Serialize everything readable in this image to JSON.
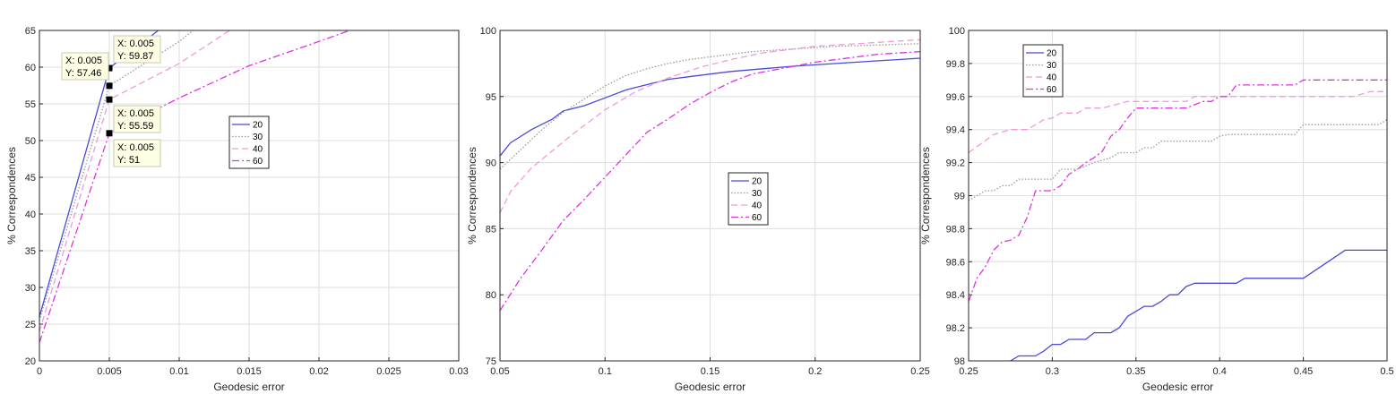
{
  "figure": {
    "legend_labels": [
      "20",
      "30",
      "40",
      "60"
    ],
    "series_colors": {
      "20": "#4a4ad8",
      "30": "#9a9a9a",
      "40": "#f29ad8",
      "60": "#e033e0"
    }
  },
  "chart_data": [
    {
      "type": "line",
      "xlabel": "Geodesic error",
      "ylabel": "% Correspondences",
      "xlim": [
        0,
        0.03
      ],
      "ylim": [
        20,
        65
      ],
      "xticks": [
        "0",
        "0.005",
        "0.01",
        "0.015",
        "0.02",
        "0.025",
        "0.03"
      ],
      "yticks": [
        "20",
        "25",
        "30",
        "35",
        "40",
        "45",
        "50",
        "55",
        "60",
        "65"
      ],
      "grid": true,
      "legend_position": "center-right",
      "series": [
        {
          "name": "20",
          "style": "solid",
          "x": [
            0,
            0.005,
            0.0085
          ],
          "y": [
            26,
            59.87,
            65
          ]
        },
        {
          "name": "30",
          "style": "dotted",
          "x": [
            0,
            0.005,
            0.01,
            0.011
          ],
          "y": [
            25.5,
            57.46,
            63.5,
            65
          ]
        },
        {
          "name": "40",
          "style": "dashed",
          "x": [
            0,
            0.005,
            0.01,
            0.0136
          ],
          "y": [
            24,
            55.59,
            60.5,
            65
          ]
        },
        {
          "name": "60",
          "style": "dashdot",
          "x": [
            0,
            0.005,
            0.01,
            0.015,
            0.02,
            0.0222
          ],
          "y": [
            22.5,
            51,
            55.8,
            60.2,
            63.5,
            65
          ]
        }
      ],
      "datatips": [
        {
          "x": 0.005,
          "y": 59.87,
          "lines": [
            "X: 0.005",
            "Y: 59.87"
          ]
        },
        {
          "x": 0.005,
          "y": 57.46,
          "lines": [
            "X: 0.005",
            "Y: 57.46"
          ]
        },
        {
          "x": 0.005,
          "y": 55.59,
          "lines": [
            "X: 0.005",
            "Y: 55.59"
          ]
        },
        {
          "x": 0.005,
          "y": 51,
          "lines": [
            "X: 0.005",
            "Y: 51"
          ]
        }
      ]
    },
    {
      "type": "line",
      "xlabel": "Geodesic error",
      "ylabel": "% Correspondences",
      "xlim": [
        0.05,
        0.25
      ],
      "ylim": [
        75,
        100
      ],
      "xticks": [
        "0.05",
        "0.1",
        "0.15",
        "0.2",
        "0.25"
      ],
      "yticks": [
        "75",
        "80",
        "85",
        "90",
        "95",
        "100"
      ],
      "grid": true,
      "legend_position": "center",
      "series": [
        {
          "name": "20",
          "style": "solid",
          "x": [
            0.05,
            0.055,
            0.065,
            0.075,
            0.08,
            0.09,
            0.1,
            0.11,
            0.12,
            0.13,
            0.14,
            0.15,
            0.16,
            0.175,
            0.19,
            0.2,
            0.21,
            0.22,
            0.23,
            0.24,
            0.25
          ],
          "y": [
            90.5,
            91.5,
            92.5,
            93.3,
            93.9,
            94.3,
            94.9,
            95.5,
            95.9,
            96.3,
            96.5,
            96.7,
            96.9,
            97.1,
            97.3,
            97.4,
            97.5,
            97.6,
            97.7,
            97.8,
            97.9
          ]
        },
        {
          "name": "30",
          "style": "dotted",
          "x": [
            0.05,
            0.06,
            0.07,
            0.08,
            0.09,
            0.1,
            0.11,
            0.12,
            0.13,
            0.14,
            0.15,
            0.16,
            0.17,
            0.18,
            0.19,
            0.2,
            0.21,
            0.22,
            0.23,
            0.24,
            0.25
          ],
          "y": [
            89.5,
            91.0,
            92.5,
            93.8,
            94.8,
            95.8,
            96.6,
            97.1,
            97.5,
            97.8,
            98.0,
            98.2,
            98.4,
            98.5,
            98.6,
            98.7,
            98.8,
            98.85,
            98.9,
            98.95,
            99.0
          ]
        },
        {
          "name": "40",
          "style": "dashed",
          "x": [
            0.05,
            0.055,
            0.065,
            0.075,
            0.085,
            0.1,
            0.115,
            0.13,
            0.145,
            0.16,
            0.175,
            0.19,
            0.2,
            0.21,
            0.22,
            0.23,
            0.24,
            0.25
          ],
          "y": [
            86.2,
            87.8,
            89.6,
            90.9,
            92.2,
            94.0,
            95.4,
            96.4,
            97.2,
            97.8,
            98.3,
            98.6,
            98.8,
            98.9,
            99.0,
            99.1,
            99.2,
            99.3
          ]
        },
        {
          "name": "60",
          "style": "dashdot",
          "x": [
            0.05,
            0.06,
            0.07,
            0.08,
            0.09,
            0.1,
            0.11,
            0.12,
            0.13,
            0.14,
            0.15,
            0.16,
            0.17,
            0.18,
            0.19,
            0.2,
            0.21,
            0.22,
            0.23,
            0.24,
            0.25
          ],
          "y": [
            78.8,
            81.3,
            83.4,
            85.6,
            87.2,
            88.9,
            90.6,
            92.3,
            93.3,
            94.4,
            95.3,
            96.1,
            96.7,
            97.0,
            97.3,
            97.6,
            97.8,
            98.0,
            98.2,
            98.3,
            98.4
          ]
        }
      ]
    },
    {
      "type": "line",
      "xlabel": "Geodesic error",
      "ylabel": "% Correspondences",
      "xlim": [
        0.25,
        0.5
      ],
      "ylim": [
        98,
        100
      ],
      "xticks": [
        "0.25",
        "0.3",
        "0.35",
        "0.4",
        "0.45",
        "0.5"
      ],
      "yticks": [
        "98",
        "98.2",
        "98.4",
        "98.6",
        "98.8",
        "99",
        "99.2",
        "99.4",
        "99.6",
        "99.8",
        "100"
      ],
      "grid": true,
      "legend_position": "top-left",
      "series": [
        {
          "name": "20",
          "style": "solid",
          "x": [
            0.25,
            0.265,
            0.275,
            0.28,
            0.29,
            0.295,
            0.3,
            0.305,
            0.31,
            0.32,
            0.325,
            0.335,
            0.34,
            0.345,
            0.35,
            0.355,
            0.36,
            0.365,
            0.37,
            0.375,
            0.38,
            0.385,
            0.39,
            0.41,
            0.415,
            0.45,
            0.475,
            0.5
          ],
          "y": [
            97.96,
            97.98,
            98.0,
            98.03,
            98.03,
            98.06,
            98.1,
            98.1,
            98.13,
            98.13,
            98.17,
            98.17,
            98.2,
            98.27,
            98.3,
            98.33,
            98.33,
            98.36,
            98.4,
            98.4,
            98.45,
            98.47,
            98.47,
            98.47,
            98.5,
            98.5,
            98.67,
            98.67
          ]
        },
        {
          "name": "30",
          "style": "dotted",
          "x": [
            0.25,
            0.26,
            0.265,
            0.27,
            0.275,
            0.28,
            0.29,
            0.3,
            0.305,
            0.315,
            0.325,
            0.335,
            0.34,
            0.35,
            0.355,
            0.36,
            0.365,
            0.37,
            0.395,
            0.4,
            0.405,
            0.445,
            0.45,
            0.495,
            0.5
          ],
          "y": [
            98.97,
            99.03,
            99.03,
            99.06,
            99.06,
            99.1,
            99.1,
            99.1,
            99.16,
            99.16,
            99.2,
            99.23,
            99.26,
            99.26,
            99.29,
            99.29,
            99.33,
            99.33,
            99.33,
            99.36,
            99.37,
            99.37,
            99.43,
            99.43,
            99.46
          ]
        },
        {
          "name": "40",
          "style": "dashed",
          "x": [
            0.25,
            0.265,
            0.275,
            0.285,
            0.29,
            0.295,
            0.3,
            0.305,
            0.315,
            0.32,
            0.33,
            0.345,
            0.35,
            0.38,
            0.385,
            0.48,
            0.49,
            0.5
          ],
          "y": [
            99.26,
            99.37,
            99.4,
            99.4,
            99.43,
            99.46,
            99.47,
            99.5,
            99.5,
            99.53,
            99.53,
            99.57,
            99.57,
            99.57,
            99.6,
            99.6,
            99.63,
            99.63
          ]
        },
        {
          "name": "60",
          "style": "dashdot",
          "x": [
            0.25,
            0.255,
            0.26,
            0.265,
            0.27,
            0.275,
            0.28,
            0.285,
            0.29,
            0.3,
            0.305,
            0.31,
            0.315,
            0.32,
            0.325,
            0.33,
            0.335,
            0.34,
            0.345,
            0.35,
            0.38,
            0.385,
            0.39,
            0.395,
            0.4,
            0.405,
            0.41,
            0.44,
            0.445,
            0.45,
            0.5
          ],
          "y": [
            98.36,
            98.5,
            98.57,
            98.67,
            98.72,
            98.73,
            98.76,
            98.87,
            99.03,
            99.03,
            99.06,
            99.13,
            99.16,
            99.2,
            99.23,
            99.27,
            99.36,
            99.4,
            99.47,
            99.53,
            99.53,
            99.55,
            99.57,
            99.57,
            99.6,
            99.6,
            99.67,
            99.67,
            99.67,
            99.7,
            99.7
          ]
        }
      ]
    }
  ]
}
